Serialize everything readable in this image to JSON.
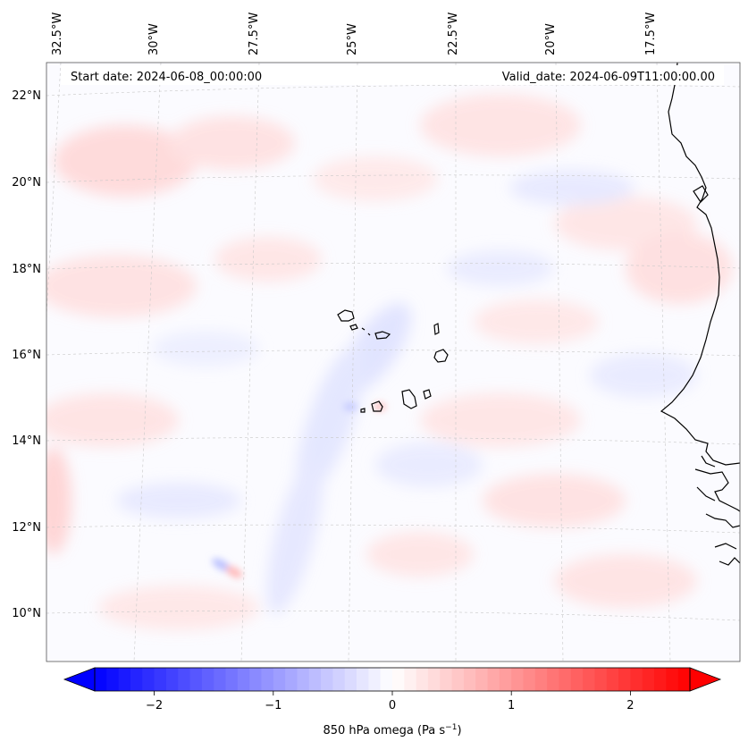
{
  "header": {
    "start_date": "Start date: 2024-06-08_00:00:00",
    "valid_date": "Valid_date: 2024-06-09T11:00:00.00"
  },
  "map": {
    "lon_labels": [
      "32.5°W",
      "30°W",
      "27.5°W",
      "25°W",
      "22.5°W",
      "20°W",
      "17.5°W"
    ],
    "lat_labels": [
      "22°N",
      "20°N",
      "18°N",
      "16°N",
      "14°N",
      "12°N",
      "10°N"
    ],
    "colors": {
      "coast": "#000000",
      "grid": "#bdbdbd"
    }
  },
  "colorbar": {
    "ticks": [
      "−2",
      "−1",
      "0",
      "1",
      "2"
    ],
    "label_main": "850 hPa omega (Pa s",
    "label_sup": "−1",
    "label_end": ")",
    "colors": {
      "min": "#0000ff",
      "mid": "#ffffff",
      "max": "#ff0000"
    }
  }
}
